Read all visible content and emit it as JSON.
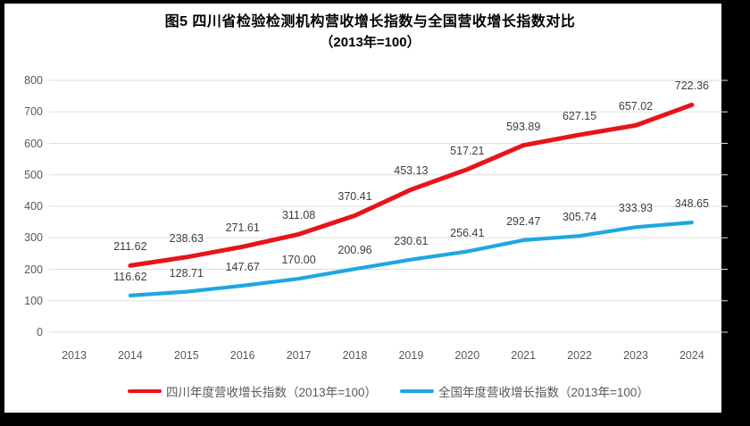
{
  "frame": {
    "border_color": "#000000",
    "panel_color": "#ffffff"
  },
  "title": {
    "line1": "图5  四川省检验检测机构营收增长指数与全国营收增长指数对比",
    "line2": "（2013年=100）"
  },
  "chart_data": {
    "type": "line",
    "categories": [
      "2013",
      "2014",
      "2015",
      "2016",
      "2017",
      "2018",
      "2019",
      "2020",
      "2021",
      "2022",
      "2023",
      "2024"
    ],
    "series": [
      {
        "name": "四川年度营收增长指数（2013年=100）",
        "color": "#e8141b",
        "start_index": 1,
        "values": [
          211.62,
          238.63,
          271.61,
          311.08,
          370.41,
          453.13,
          517.21,
          593.89,
          627.15,
          657.02,
          722.36
        ]
      },
      {
        "name": "全国年度营收增长指数（2013年=100）",
        "color": "#1ea7e0",
        "start_index": 1,
        "values": [
          116.62,
          128.71,
          147.67,
          170.0,
          200.96,
          230.61,
          256.41,
          292.47,
          305.74,
          333.93,
          348.65
        ]
      }
    ],
    "ylim": [
      0,
      800
    ],
    "ytick_step": 100,
    "ytick_labels": [
      "0",
      "100",
      "200",
      "300",
      "400",
      "500",
      "600",
      "700",
      "800"
    ],
    "grid": "horizontal-only",
    "gridline_color": "#dedede",
    "axis_label_color": "#595959",
    "data_label_color": "#3d3d3d",
    "data_labels": true,
    "data_labels_decimals": 2,
    "legend_position": "bottom"
  }
}
